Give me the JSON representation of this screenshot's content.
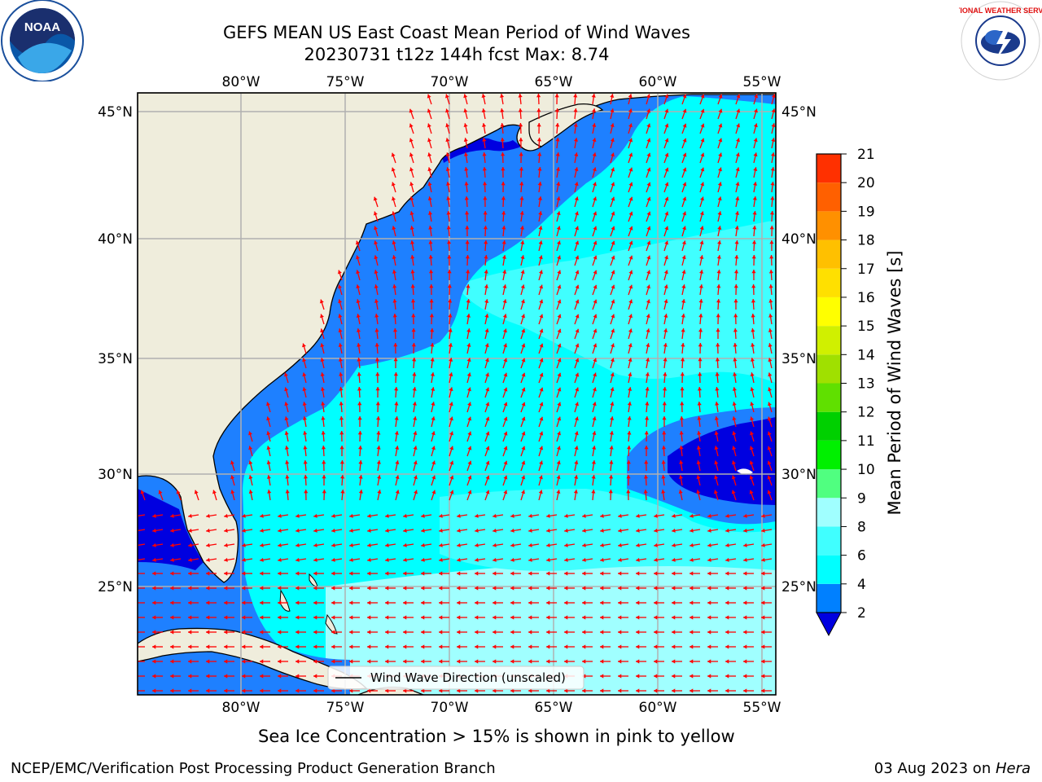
{
  "title": {
    "line1": "GEFS MEAN US East Coast Mean Period of Wind Waves",
    "line2": "20230731 t12z 144h fcst   Max: 8.74"
  },
  "logos": {
    "left": "NOAA",
    "right": "NATIONAL WEATHER SERVICE"
  },
  "map": {
    "lon_labels": [
      "80°W",
      "75°W",
      "70°W",
      "65°W",
      "60°W",
      "55°W"
    ],
    "lat_labels": [
      "45°N",
      "40°N",
      "35°N",
      "30°N",
      "25°N"
    ],
    "legend": "Wind Wave Direction (unscaled)",
    "colors": {
      "land": "#efeddc",
      "coast": "#000000",
      "grid": "#b0b0b0",
      "arrow": "#ff0000"
    }
  },
  "colorbar": {
    "label": "Mean Period of Wind Waves [s]",
    "ticks": [
      "2",
      "4",
      "6",
      "8",
      "9",
      "10",
      "11",
      "12",
      "13",
      "14",
      "15",
      "16",
      "17",
      "18",
      "19",
      "20",
      "21"
    ],
    "under_color": "#0000e0",
    "colors": [
      "#0080ff",
      "#00ffff",
      "#40ffff",
      "#a0ffff",
      "#50ff80",
      "#00f000",
      "#00d000",
      "#60e000",
      "#a0e000",
      "#d0f000",
      "#ffff00",
      "#ffe000",
      "#ffc000",
      "#ff9000",
      "#ff6000",
      "#ff3000",
      "#ff0000"
    ]
  },
  "note": "Sea Ice Concentration > 15% is shown in pink to yellow",
  "footer": {
    "left": "NCEP/EMC/Verification Post Processing Product Generation Branch",
    "right_prefix": "03 Aug 2023 on ",
    "right_host": "Hera"
  }
}
